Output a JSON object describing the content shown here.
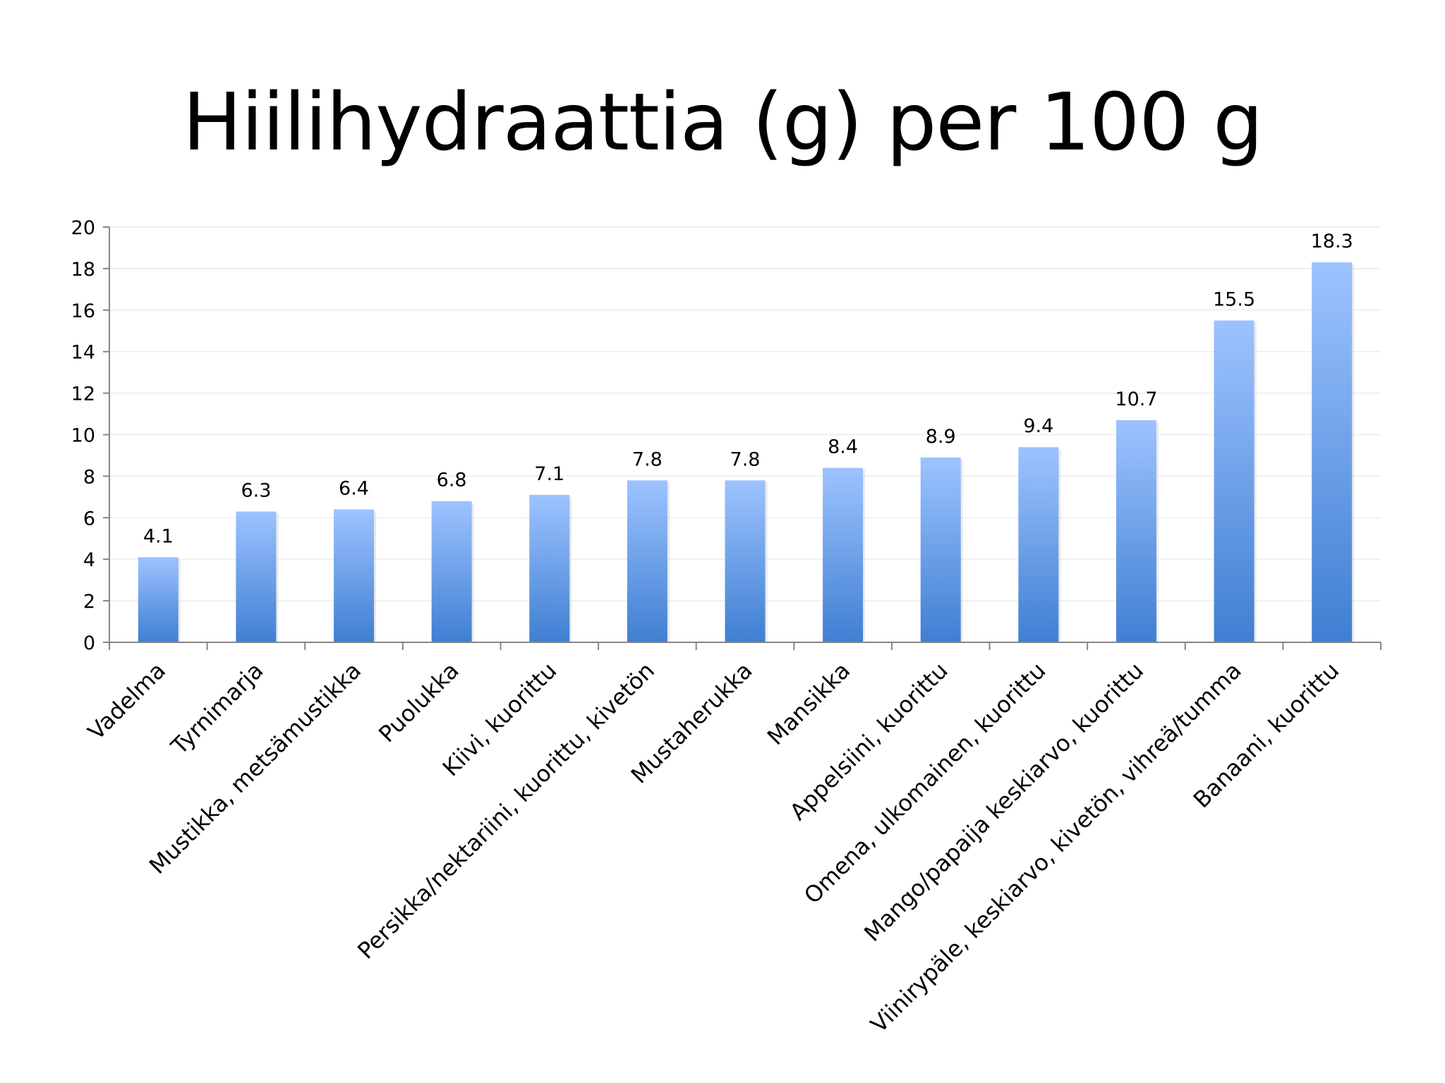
{
  "chart_data": {
    "type": "bar",
    "title": "Hiilihydraattia (g) per 100 g",
    "categories": [
      "Vadelma",
      "Tyrnimarja",
      "Mustikka, metsämustikka",
      "Puolukka",
      "Kiivi, kuorittu",
      "Persikka/nektariini, kuorittu, kivetön",
      "Mustaherukka",
      "Mansikka",
      "Appelsiini, kuorittu",
      "Omena, ulkomainen, kuorittu",
      "Mango/papaija keskiarvo, kuorittu",
      "Viinirypäle, keskiarvo, kivetön, vihreä/tumma",
      "Banaani, kuorittu"
    ],
    "values": [
      4.1,
      6.3,
      6.4,
      6.8,
      7.1,
      7.8,
      7.8,
      8.4,
      8.9,
      9.4,
      10.7,
      15.5,
      18.3
    ],
    "data_labels": [
      "4.1",
      "6.3",
      "6.4",
      "6.8",
      "7.1",
      "7.8",
      "7.8",
      "8.4",
      "8.9",
      "9.4",
      "10.7",
      "15.5",
      "18.3"
    ],
    "y_ticks": [
      "0",
      "2",
      "4",
      "6",
      "8",
      "10",
      "12",
      "14",
      "16",
      "18",
      "20"
    ],
    "ylim": [
      0,
      20
    ],
    "y_tick_step": 2,
    "grid": true,
    "legend": "none",
    "xlabel": "",
    "ylabel": "",
    "colors": {
      "bar_top": "#9dc3ff",
      "bar_bottom": "#3f7fd2",
      "axis": "#868686",
      "grid": "#ececec"
    }
  }
}
